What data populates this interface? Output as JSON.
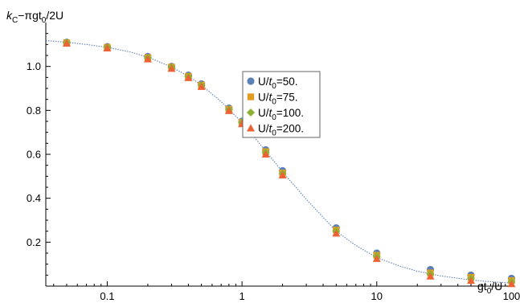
{
  "chart_data": {
    "type": "scatter",
    "xscale": "log",
    "xlim": [
      0.035,
      105
    ],
    "ylim": [
      0,
      1.2
    ],
    "xlabel": "gt0/U",
    "ylabel": "kC−πgt0/2U",
    "xlabel_parts": {
      "base": "gt",
      "sub": "0",
      "tail": "/U"
    },
    "ylabel_parts": {
      "k": "k",
      "ksub": "C",
      "mid": "−πgt",
      "sub": "0",
      "tail": "/2U"
    },
    "x_ticks": [
      {
        "value": 0.1,
        "label": "0.1"
      },
      {
        "value": 1,
        "label": "1"
      },
      {
        "value": 10,
        "label": "10"
      },
      {
        "value": 100,
        "label": "100"
      }
    ],
    "y_ticks": [
      {
        "value": 0.2,
        "label": "0.2"
      },
      {
        "value": 0.4,
        "label": "0.4"
      },
      {
        "value": 0.6,
        "label": "0.6"
      },
      {
        "value": 0.8,
        "label": "0.8"
      },
      {
        "value": 1.0,
        "label": "1.0"
      }
    ],
    "legend_position": "center",
    "series": [
      {
        "name": "U/t0=50.",
        "legend": {
          "pre": "U/",
          "t": "t",
          "sub": "0",
          "post": "=50."
        },
        "marker": "circle",
        "color": "#5E81B5",
        "x": [
          0.05,
          0.1,
          0.2,
          0.3,
          0.4,
          0.5,
          0.8,
          1,
          1.5,
          2,
          5,
          10,
          25,
          50,
          100
        ],
        "y": [
          1.11,
          1.09,
          1.045,
          1.0,
          0.96,
          0.92,
          0.81,
          0.75,
          0.62,
          0.525,
          0.265,
          0.15,
          0.075,
          0.05,
          0.035
        ]
      },
      {
        "name": "U/t0=75.",
        "legend": {
          "pre": "U/",
          "t": "t",
          "sub": "0",
          "post": "=75."
        },
        "marker": "square",
        "color": "#E19C24",
        "x": [
          0.05,
          0.1,
          0.2,
          0.3,
          0.4,
          0.5,
          0.8,
          1,
          1.5,
          2,
          5,
          10,
          25,
          50,
          100
        ],
        "y": [
          1.108,
          1.087,
          1.04,
          0.997,
          0.955,
          0.915,
          0.805,
          0.745,
          0.612,
          0.515,
          0.255,
          0.14,
          0.06,
          0.04,
          0.025
        ]
      },
      {
        "name": "U/t0=100.",
        "legend": {
          "pre": "U/",
          "t": "t",
          "sub": "0",
          "post": "=100."
        },
        "marker": "diamond",
        "color": "#8FB032",
        "x": [
          0.05,
          0.1,
          0.2,
          0.3,
          0.4,
          0.5,
          0.8,
          1,
          1.5,
          2,
          5,
          10,
          25,
          50,
          100
        ],
        "y": [
          1.107,
          1.086,
          1.038,
          0.995,
          0.953,
          0.913,
          0.803,
          0.743,
          0.608,
          0.512,
          0.25,
          0.135,
          0.055,
          0.035,
          0.02
        ]
      },
      {
        "name": "U/t0=200.",
        "legend": {
          "pre": "U/",
          "t": "t",
          "sub": "0",
          "post": "=200."
        },
        "marker": "triangle",
        "color": "#EB6235",
        "x": [
          0.05,
          0.1,
          0.2,
          0.3,
          0.4,
          0.5,
          0.8,
          1,
          1.5,
          2,
          5,
          10,
          25,
          50,
          100
        ],
        "y": [
          1.105,
          1.083,
          1.033,
          0.99,
          0.948,
          0.908,
          0.798,
          0.738,
          0.6,
          0.505,
          0.24,
          0.125,
          0.045,
          0.025,
          0.01
        ]
      }
    ],
    "curve": {
      "style": "dotted",
      "color": "#5E81B5",
      "x": [
        0.035,
        0.05,
        0.07,
        0.1,
        0.15,
        0.2,
        0.3,
        0.4,
        0.5,
        0.7,
        1,
        1.5,
        2,
        3,
        5,
        7,
        10,
        15,
        20,
        30,
        50,
        70,
        100,
        105
      ],
      "y": [
        1.118,
        1.11,
        1.1,
        1.087,
        1.065,
        1.042,
        0.998,
        0.955,
        0.915,
        0.84,
        0.745,
        0.615,
        0.52,
        0.395,
        0.25,
        0.185,
        0.13,
        0.09,
        0.068,
        0.046,
        0.028,
        0.02,
        0.014,
        0.013
      ]
    }
  }
}
